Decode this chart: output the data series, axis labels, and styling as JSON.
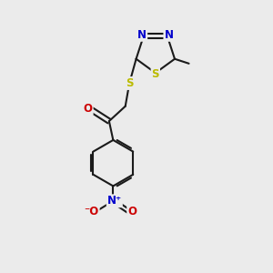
{
  "bg_color": "#ebebeb",
  "bond_color": "#1a1a1a",
  "atom_colors": {
    "N": "#0000cc",
    "O": "#cc0000",
    "S": "#bbbb00",
    "C": "#1a1a1a"
  },
  "figsize": [
    3.0,
    3.0
  ],
  "dpi": 100,
  "xlim": [
    0,
    10
  ],
  "ylim": [
    0,
    10
  ]
}
